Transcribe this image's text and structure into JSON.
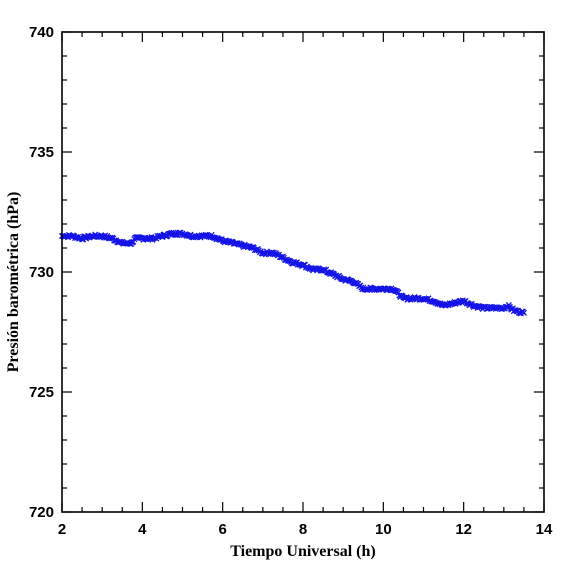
{
  "chart_data": {
    "type": "scatter",
    "title": "",
    "xlabel": "Tiempo Universal (h)",
    "ylabel": "Presión barométrica (hPa)",
    "xlim": [
      2,
      14
    ],
    "ylim": [
      720,
      740
    ],
    "xticks": [
      2,
      4,
      6,
      8,
      10,
      12,
      14
    ],
    "yticks": [
      720,
      725,
      730,
      735,
      740
    ],
    "xtick_labels": [
      "2",
      "4",
      "6",
      "8",
      "10",
      "12",
      "14"
    ],
    "ytick_labels": [
      "720",
      "725",
      "730",
      "735",
      "740"
    ],
    "marker": "x",
    "grid": false,
    "colors": {
      "series": "#1414e6",
      "axes": "#000000"
    },
    "series": [
      {
        "values": [
          [
            2.0,
            731.5
          ],
          [
            2.25,
            731.5
          ],
          [
            2.5,
            731.4
          ],
          [
            2.75,
            731.5
          ],
          [
            3.0,
            731.5
          ],
          [
            3.25,
            731.4
          ],
          [
            3.5,
            731.2
          ],
          [
            3.75,
            731.2
          ],
          [
            3.8,
            731.4
          ],
          [
            4.0,
            731.4
          ],
          [
            4.25,
            731.4
          ],
          [
            4.5,
            731.5
          ],
          [
            4.75,
            731.6
          ],
          [
            5.0,
            731.6
          ],
          [
            5.25,
            731.5
          ],
          [
            5.5,
            731.5
          ],
          [
            5.75,
            731.5
          ],
          [
            6.0,
            731.3
          ],
          [
            6.25,
            731.2
          ],
          [
            6.5,
            731.1
          ],
          [
            6.75,
            731.0
          ],
          [
            7.0,
            730.8
          ],
          [
            7.25,
            730.8
          ],
          [
            7.5,
            730.6
          ],
          [
            7.75,
            730.4
          ],
          [
            8.0,
            730.3
          ],
          [
            8.25,
            730.1
          ],
          [
            8.5,
            730.1
          ],
          [
            8.75,
            729.9
          ],
          [
            9.0,
            729.7
          ],
          [
            9.25,
            729.6
          ],
          [
            9.5,
            729.3
          ],
          [
            9.75,
            729.3
          ],
          [
            10.0,
            729.3
          ],
          [
            10.25,
            729.3
          ],
          [
            10.5,
            728.9
          ],
          [
            10.75,
            728.9
          ],
          [
            11.0,
            728.9
          ],
          [
            11.25,
            728.8
          ],
          [
            11.5,
            728.6
          ],
          [
            11.75,
            728.7
          ],
          [
            12.0,
            728.8
          ],
          [
            12.25,
            728.6
          ],
          [
            12.5,
            728.5
          ],
          [
            12.75,
            728.5
          ],
          [
            13.0,
            728.5
          ],
          [
            13.1,
            728.6
          ],
          [
            13.25,
            728.4
          ],
          [
            13.5,
            728.3
          ]
        ]
      }
    ]
  }
}
